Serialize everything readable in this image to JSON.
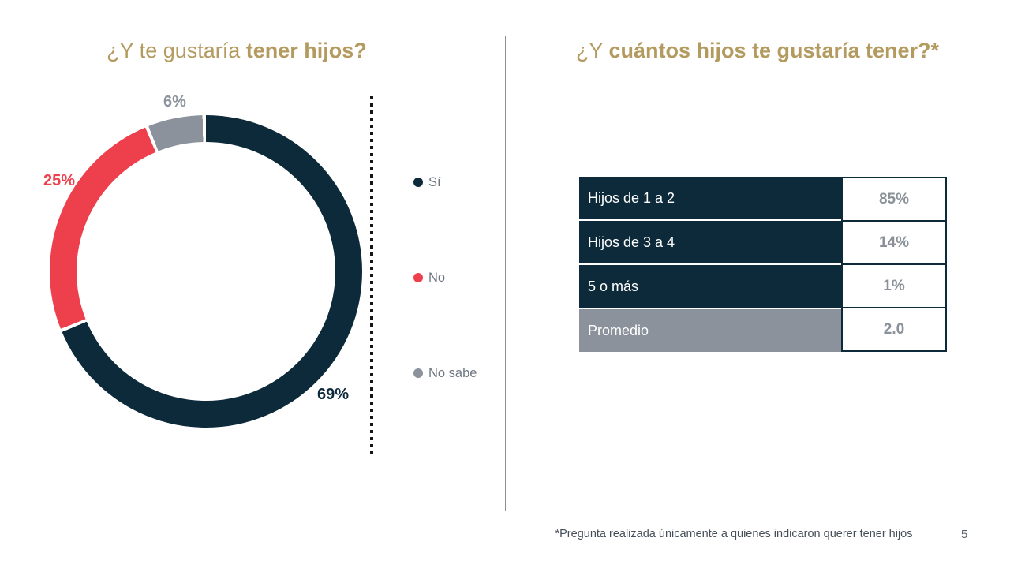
{
  "slide": {
    "left_title": {
      "regular": "¿Y te gustaría ",
      "bold": "tener hijos?"
    },
    "right_title": {
      "regular": "¿Y ",
      "bold": "cuántos hijos te gustaría tener?*"
    },
    "footnote": "*Pregunta realizada únicamente a quienes indicaron querer tener hijos",
    "page_number": "5"
  },
  "colors": {
    "navy": "#0d2a3b",
    "red": "#ee3f4d",
    "gray": "#8b929b",
    "gold": "#b39a5e",
    "legend_text": "#6e7680",
    "value_text": "#8a9198",
    "footnote_text": "#454e58",
    "pagenum_text": "#5a6269",
    "divider": "#8d9093",
    "dotted": "#151515"
  },
  "chart_data": [
    {
      "type": "pie",
      "subtype": "donut",
      "title": "¿Y te gustaría tener hijos?",
      "categories": [
        "Sí",
        "No",
        "No sabe"
      ],
      "values": [
        69,
        25,
        6
      ],
      "display_labels": [
        "69%",
        "25%",
        "6%"
      ],
      "colors": [
        "#0d2a3b",
        "#ee3f4d",
        "#8b929b"
      ],
      "start_angle_deg": 0,
      "direction": "clockwise",
      "legend_position": "right"
    },
    {
      "type": "table",
      "title": "¿Y cuántos hijos te gustaría tener?*",
      "rows": [
        {
          "label": "Hijos de 1 a 2",
          "value": "85%",
          "label_bg": "navy"
        },
        {
          "label": "Hijos de 3 a 4",
          "value": "14%",
          "label_bg": "navy"
        },
        {
          "label": "5 o más",
          "value": "1%",
          "label_bg": "navy"
        },
        {
          "label": "Promedio",
          "value": "2.0",
          "label_bg": "gray"
        }
      ]
    }
  ]
}
